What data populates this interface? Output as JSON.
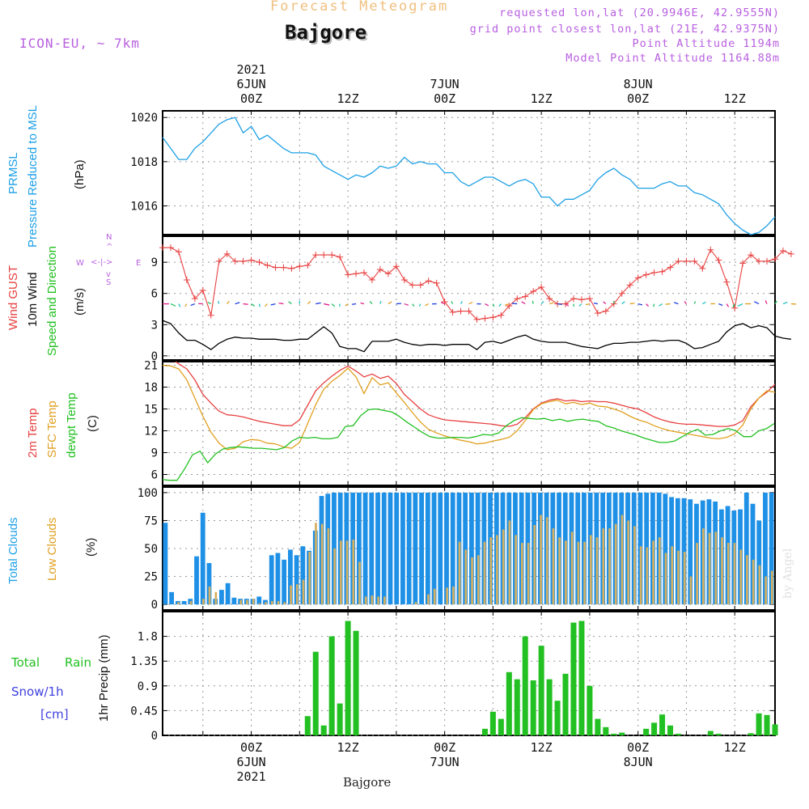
{
  "header": {
    "subtitle": "Forecast Meteogram",
    "location": "Bajgore",
    "model": "ICON-EU, ~ 7km",
    "requested": "requested lon,lat (20.9946E, 42.9555N)",
    "grid_point": "grid point closest lon,lat (21E, 42.9375N)",
    "point_altitude": "Point Altitude 1194m",
    "model_altitude": "Model Point Altitude 1164.88m",
    "footer_location": "Bajgore",
    "credit": "by Angel"
  },
  "panel_labels": {
    "pressure": [
      "PRMSL",
      "Pressure Reduced to MSL",
      "(hPa)"
    ],
    "wind": [
      "Wind GUST",
      "10m Wind",
      "Speed and Direction",
      "(m/s)"
    ],
    "compass": {
      "n": "N",
      "s": "S",
      "w": "W",
      "e": "E",
      "we": "<-|->",
      "ns_a": "^",
      "ns_b": "v"
    },
    "temp": [
      "2m Temp",
      "SFC Temp",
      "dewpt Temp",
      "(C)"
    ],
    "clouds": [
      "Total Clouds",
      "Low Clouds",
      "(%)"
    ],
    "precip": [
      "Total",
      "Rain",
      "Snow/1h",
      "[cm]",
      "1hr Precip (mm)"
    ]
  },
  "colors": {
    "pressure": "#1ea0e6",
    "gust": "#e84040",
    "wind": "#000000",
    "temp2m": "#e84040",
    "sfc": "#e0a020",
    "dewpt": "#22c022",
    "total_clouds": "#1e90e6",
    "low_clouds": "#d4b060",
    "rain": "#22c022",
    "snow": "#4040e0",
    "meta": "#b860e0",
    "subtitle": "#f0c080"
  },
  "chart_data": {
    "type": "line",
    "x_ticks": [
      {
        "hour": 0,
        "time": "00Z",
        "date": "6JUN",
        "year": "2021"
      },
      {
        "hour": 12,
        "time": "12Z",
        "date": "",
        "year": ""
      },
      {
        "hour": 24,
        "time": "00Z",
        "date": "7JUN",
        "year": ""
      },
      {
        "hour": 36,
        "time": "12Z",
        "date": "",
        "year": ""
      },
      {
        "hour": 48,
        "time": "00Z",
        "date": "8JUN",
        "year": ""
      },
      {
        "hour": 60,
        "time": "12Z",
        "date": "",
        "year": ""
      }
    ],
    "x_range": [
      -11,
      65
    ],
    "pressure": {
      "ylim": [
        1014.7,
        1020.3
      ],
      "yticks": [
        "1016",
        "1018",
        "1020"
      ],
      "x": [
        -11,
        -10,
        -9,
        -8,
        -7,
        -6,
        -5,
        -4,
        -3,
        -2,
        -1,
        0,
        1,
        2,
        3,
        4,
        5,
        6,
        7,
        8,
        9,
        10,
        11,
        12,
        13,
        14,
        15,
        16,
        17,
        18,
        19,
        20,
        21,
        22,
        23,
        24,
        25,
        26,
        27,
        28,
        29,
        30,
        31,
        32,
        33,
        34,
        35,
        36,
        37,
        38,
        39,
        40,
        41,
        42,
        43,
        44,
        45,
        46,
        47,
        48,
        49,
        50,
        51,
        52,
        53,
        54,
        55,
        56,
        57,
        58,
        59,
        60,
        61,
        62,
        63,
        64,
        65
      ],
      "values": [
        1019.1,
        1018.6,
        1018.1,
        1018.1,
        1018.6,
        1018.9,
        1019.3,
        1019.7,
        1019.9,
        1020.0,
        1019.3,
        1019.6,
        1019.0,
        1019.2,
        1018.9,
        1018.6,
        1018.4,
        1018.4,
        1018.4,
        1018.3,
        1017.8,
        1017.6,
        1017.4,
        1017.2,
        1017.4,
        1017.3,
        1017.5,
        1017.8,
        1017.7,
        1017.8,
        1018.2,
        1017.9,
        1018.0,
        1017.9,
        1017.9,
        1017.5,
        1017.5,
        1017.1,
        1016.9,
        1017.1,
        1017.3,
        1017.3,
        1017.1,
        1016.9,
        1017.1,
        1017.2,
        1017.0,
        1016.4,
        1016.4,
        1016.0,
        1016.3,
        1016.3,
        1016.5,
        1016.7,
        1017.2,
        1017.5,
        1017.7,
        1017.4,
        1017.2,
        1016.8,
        1016.8,
        1016.8,
        1017.0,
        1017.1,
        1016.9,
        1016.9,
        1016.6,
        1016.5,
        1016.3,
        1016.1,
        1015.6,
        1015.2,
        1014.9,
        1014.7,
        1014.8,
        1015.1,
        1015.5
      ]
    },
    "wind": {
      "ylim": [
        -0.4,
        11.5
      ],
      "yticks": [
        "0",
        "3",
        "6",
        "9"
      ],
      "gust": [
        10.4,
        10.4,
        10.0,
        7.3,
        5.5,
        6.3,
        3.9,
        9.1,
        9.8,
        9.1,
        9.1,
        9.2,
        9.0,
        8.7,
        8.5,
        8.5,
        8.4,
        8.6,
        8.7,
        9.7,
        9.7,
        9.7,
        9.5,
        7.8,
        7.9,
        8.0,
        7.3,
        8.3,
        7.9,
        8.6,
        7.3,
        6.8,
        6.8,
        7.2,
        7.0,
        5.2,
        4.2,
        4.3,
        4.3,
        3.5,
        3.6,
        3.7,
        3.9,
        4.8,
        5.5,
        5.7,
        6.2,
        6.6,
        5.5,
        5.0,
        5.0,
        5.5,
        5.4,
        5.5,
        4.1,
        4.3,
        5.0,
        6.0,
        6.8,
        7.5,
        7.8,
        8.0,
        8.1,
        8.5,
        9.1,
        9.1,
        9.1,
        8.4,
        10.2,
        9.2,
        7.1,
        4.6,
        8.9,
        9.7,
        9.1,
        9.1,
        9.3,
        10.1,
        9.8
      ],
      "speed": [
        3.4,
        3.1,
        2.2,
        1.5,
        1.5,
        1.1,
        0.6,
        1.2,
        1.6,
        1.8,
        1.7,
        1.7,
        1.6,
        1.6,
        1.6,
        1.5,
        1.5,
        1.6,
        1.6,
        2.2,
        2.8,
        2.2,
        0.9,
        0.7,
        0.7,
        0.4,
        1.4,
        1.4,
        1.4,
        1.6,
        1.3,
        1.1,
        1.0,
        1.1,
        1.1,
        1.0,
        1.1,
        1.1,
        1.1,
        0.6,
        1.3,
        1.4,
        1.2,
        1.5,
        1.8,
        2.0,
        1.6,
        1.4,
        1.3,
        1.3,
        1.3,
        1.1,
        0.9,
        0.8,
        0.7,
        1.0,
        1.2,
        1.2,
        1.3,
        1.3,
        1.4,
        1.5,
        1.4,
        1.5,
        1.5,
        1.2,
        0.7,
        0.8,
        1.1,
        1.4,
        2.3,
        2.9,
        3.1,
        2.7,
        2.9,
        2.7,
        1.9,
        1.7,
        1.6
      ]
    },
    "temp": {
      "ylim": [
        4.5,
        21.5
      ],
      "yticks": [
        "6",
        "9",
        "12",
        "15",
        "18",
        "21"
      ],
      "temp2m": [
        22.1,
        22.0,
        21.2,
        20.5,
        19.0,
        17.0,
        15.8,
        14.7,
        14.2,
        14.1,
        13.9,
        13.6,
        13.3,
        13.1,
        12.9,
        12.7,
        12.7,
        13.5,
        15.5,
        17.5,
        18.6,
        19.5,
        20.3,
        20.9,
        20.2,
        19.4,
        19.8,
        19.2,
        19.5,
        18.5,
        17.0,
        16.0,
        15.0,
        14.2,
        13.8,
        13.5,
        13.4,
        13.3,
        13.2,
        13.1,
        13.0,
        12.9,
        12.7,
        12.6,
        12.9,
        13.8,
        15.0,
        15.8,
        16.2,
        16.4,
        16.1,
        16.2,
        16.0,
        16.1,
        16.0,
        16.0,
        15.8,
        15.5,
        15.2,
        15.0,
        14.5,
        13.9,
        13.5,
        13.2,
        13.0,
        12.9,
        12.9,
        12.8,
        12.7,
        12.6,
        12.6,
        12.8,
        13.4,
        15.3,
        16.5,
        17.3,
        18.4,
        18.7,
        19.2
      ],
      "sfc": [
        21.0,
        20.9,
        20.5,
        19.0,
        16.5,
        14.0,
        11.8,
        10.3,
        9.4,
        9.6,
        10.5,
        10.8,
        10.7,
        10.3,
        10.2,
        9.8,
        9.6,
        10.4,
        13.0,
        15.6,
        17.7,
        18.8,
        19.6,
        20.6,
        19.4,
        17.1,
        19.3,
        18.3,
        18.6,
        17.2,
        15.9,
        14.5,
        13.2,
        12.2,
        11.7,
        11.3,
        11.0,
        10.7,
        10.5,
        10.2,
        10.3,
        10.6,
        10.8,
        11.1,
        12.0,
        13.4,
        14.9,
        15.7,
        16.0,
        16.2,
        15.7,
        15.9,
        15.6,
        15.8,
        15.4,
        15.3,
        15.0,
        14.6,
        14.0,
        13.5,
        13.2,
        12.7,
        12.3,
        12.0,
        11.8,
        11.6,
        11.4,
        11.2,
        11.0,
        10.9,
        11.1,
        11.6,
        12.8,
        15.0,
        16.5,
        17.5,
        17.3,
        17.2,
        17.3
      ],
      "dewpt": [
        5.6,
        5.5,
        5.3,
        5.2,
        5.2,
        6.8,
        8.7,
        9.2,
        7.6,
        8.8,
        9.5,
        9.7,
        9.8,
        9.7,
        9.6,
        9.6,
        9.5,
        9.4,
        9.7,
        10.6,
        11.1,
        11.0,
        11.1,
        10.9,
        10.9,
        11.1,
        12.6,
        12.7,
        14.1,
        14.9,
        15.0,
        14.8,
        14.6,
        14.0,
        13.2,
        12.5,
        11.8,
        11.2,
        11.0,
        11.0,
        11.1,
        11.1,
        11.0,
        11.2,
        11.5,
        11.4,
        11.7,
        12.7,
        13.4,
        13.8,
        13.7,
        13.6,
        13.7,
        13.4,
        13.6,
        13.3,
        13.5,
        13.6,
        13.4,
        13.3,
        12.7,
        12.4,
        12.0,
        11.7,
        11.4,
        11.0,
        10.7,
        10.4,
        10.4,
        10.6,
        11.2,
        11.8,
        12.2,
        11.4,
        11.5,
        12.0,
        12.3,
        12.0,
        11.2,
        11.2,
        12.0,
        12.3,
        13.0
      ],
      "temp2m_x_start": -11,
      "sfc_x_start": -11,
      "dewpt_x_start": -13
    },
    "clouds": {
      "ylim": [
        -5,
        105
      ],
      "yticks": [
        "0",
        "25",
        "50",
        "75",
        "100"
      ],
      "x_start": -12,
      "total": [
        73,
        11,
        3,
        3,
        5,
        43,
        82,
        37,
        5,
        13,
        19,
        6,
        5,
        5,
        5,
        7,
        4,
        44,
        46,
        40,
        49,
        44,
        52,
        48,
        66,
        97,
        99,
        100,
        100,
        100,
        100,
        100,
        100,
        100,
        100,
        100,
        100,
        100,
        100,
        100,
        100,
        100,
        100,
        100,
        100,
        100,
        100,
        100,
        100,
        100,
        100,
        100,
        100,
        100,
        100,
        100,
        100,
        100,
        100,
        100,
        100,
        100,
        100,
        100,
        100,
        100,
        100,
        100,
        100,
        100,
        100,
        100,
        100,
        100,
        100,
        100,
        100,
        100,
        100,
        100,
        99,
        96,
        95,
        95,
        94,
        90,
        93,
        94,
        92,
        85,
        88,
        84,
        85,
        100,
        90,
        75,
        100,
        100
      ],
      "low": [
        0,
        0,
        2,
        0,
        3,
        0,
        5,
        16,
        11,
        0,
        0,
        0,
        4,
        4,
        5,
        1,
        2,
        3,
        3,
        2,
        17,
        18,
        22,
        47,
        73,
        72,
        68,
        50,
        57,
        57,
        58,
        38,
        7,
        8,
        7,
        7,
        0,
        0,
        0,
        0,
        2,
        0,
        9,
        14,
        0,
        15,
        16,
        56,
        49,
        42,
        44,
        56,
        60,
        62,
        67,
        75,
        62,
        55,
        55,
        71,
        80,
        78,
        68,
        60,
        57,
        65,
        56,
        56,
        62,
        60,
        68,
        68,
        72,
        80,
        75,
        70,
        52,
        51,
        57,
        60,
        46,
        52,
        48,
        47,
        25,
        55,
        68,
        64,
        65,
        60,
        55,
        55,
        49,
        44,
        40,
        35,
        25,
        30
      ]
    },
    "precip": {
      "ylim": [
        0,
        2.25
      ],
      "yticks": [
        "0",
        "0.45",
        "0.9",
        "1.35",
        "1.8"
      ],
      "rain": [
        {
          "x": 7,
          "v": 0.35
        },
        {
          "x": 8,
          "v": 1.52
        },
        {
          "x": 9,
          "v": 0.18
        },
        {
          "x": 10,
          "v": 1.8
        },
        {
          "x": 11,
          "v": 0.58
        },
        {
          "x": 12,
          "v": 2.08
        },
        {
          "x": 13,
          "v": 1.9
        },
        {
          "x": 29,
          "v": 0.12
        },
        {
          "x": 30,
          "v": 0.43
        },
        {
          "x": 31,
          "v": 0.3
        },
        {
          "x": 32,
          "v": 1.15
        },
        {
          "x": 33,
          "v": 1.02
        },
        {
          "x": 34,
          "v": 1.8
        },
        {
          "x": 35,
          "v": 1.0
        },
        {
          "x": 36,
          "v": 1.63
        },
        {
          "x": 37,
          "v": 1.02
        },
        {
          "x": 38,
          "v": 0.63
        },
        {
          "x": 39,
          "v": 1.12
        },
        {
          "x": 40,
          "v": 2.05
        },
        {
          "x": 41,
          "v": 2.08
        },
        {
          "x": 42,
          "v": 0.9
        },
        {
          "x": 43,
          "v": 0.3
        },
        {
          "x": 44,
          "v": 0.15
        },
        {
          "x": 45,
          "v": 0.03
        },
        {
          "x": 46,
          "v": 0.05
        },
        {
          "x": 49,
          "v": 0.12
        },
        {
          "x": 50,
          "v": 0.23
        },
        {
          "x": 51,
          "v": 0.38
        },
        {
          "x": 52,
          "v": 0.18
        },
        {
          "x": 53,
          "v": 0.03
        },
        {
          "x": 57,
          "v": 0.08
        },
        {
          "x": 58,
          "v": 0.03
        },
        {
          "x": 62,
          "v": 0.04
        },
        {
          "x": 63,
          "v": 0.4
        },
        {
          "x": 64,
          "v": 0.37
        },
        {
          "x": 65,
          "v": 0.2
        }
      ]
    }
  }
}
